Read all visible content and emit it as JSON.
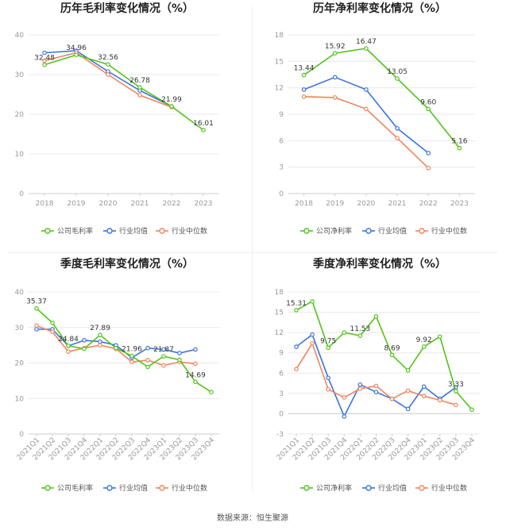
{
  "source": "数据来源：恒生聚源",
  "legend_labels": {
    "company_gross": "公司毛利率",
    "company_net": "公司净利率",
    "industry_avg": "行业均值",
    "industry_median": "行业中位数"
  },
  "colors": {
    "company": "#52c41a",
    "industry_avg": "#3a73e0",
    "industry_median": "#f0845c"
  },
  "chart_data": [
    {
      "type": "line",
      "title": "历年毛利率变化情况（%）",
      "categories": [
        "2018",
        "2019",
        "2020",
        "2021",
        "2022",
        "2023"
      ],
      "ylim": [
        0,
        40
      ],
      "yticks": [
        0,
        10,
        20,
        30,
        40
      ],
      "series": [
        {
          "name": "公司毛利率",
          "key": "company",
          "values": [
            32.48,
            34.96,
            32.56,
            26.78,
            21.99,
            16.01
          ],
          "labels": [
            "32.48",
            "34.96",
            "32.56",
            "26.78",
            "21.99",
            "16.01"
          ]
        },
        {
          "name": "行业均值",
          "key": "industry_avg",
          "values": [
            35.5,
            36.0,
            30.8,
            26.0,
            22.0,
            null
          ]
        },
        {
          "name": "行业中位数",
          "key": "industry_median",
          "values": [
            33.5,
            35.5,
            30.0,
            24.8,
            21.8,
            null
          ]
        }
      ]
    },
    {
      "type": "line",
      "title": "历年净利率变化情况（%）",
      "categories": [
        "2018",
        "2019",
        "2020",
        "2021",
        "2022",
        "2023"
      ],
      "ylim": [
        0,
        18
      ],
      "yticks": [
        0,
        3,
        6,
        9,
        12,
        15,
        18
      ],
      "series": [
        {
          "name": "公司净利率",
          "key": "company",
          "values": [
            13.44,
            15.92,
            16.47,
            13.05,
            9.6,
            5.16
          ],
          "labels": [
            "13.44",
            "15.92",
            "16.47",
            "13.05",
            "9.60",
            "5.16"
          ]
        },
        {
          "name": "行业均值",
          "key": "industry_avg",
          "values": [
            11.8,
            13.2,
            11.8,
            7.4,
            4.6,
            null
          ]
        },
        {
          "name": "行业中位数",
          "key": "industry_median",
          "values": [
            11.0,
            10.9,
            9.6,
            6.3,
            2.9,
            null
          ]
        }
      ]
    },
    {
      "type": "line",
      "title": "季度毛利率变化情况（%）",
      "categories": [
        "2021Q1",
        "2021Q2",
        "2021Q3",
        "2021Q4",
        "2022Q1",
        "2022Q2",
        "2022Q3",
        "2022Q4",
        "2023Q1",
        "2023Q2",
        "2023Q3",
        "2023Q4"
      ],
      "ylim": [
        0,
        40
      ],
      "yticks": [
        0,
        10,
        20,
        30,
        40
      ],
      "series": [
        {
          "name": "公司毛利率",
          "key": "company",
          "values": [
            35.37,
            31.3,
            24.84,
            24.0,
            27.89,
            24.2,
            21.96,
            18.9,
            21.87,
            20.9,
            14.69,
            11.8
          ],
          "labels": [
            "35.37",
            "",
            "24.84",
            "",
            "27.89",
            "",
            "21.96",
            "",
            "21.87",
            "",
            "14.69",
            ""
          ]
        },
        {
          "name": "行业均值",
          "key": "industry_avg",
          "values": [
            29.5,
            29.5,
            24.8,
            26.4,
            26.0,
            25.0,
            21.5,
            24.2,
            23.8,
            22.8,
            23.8,
            null
          ]
        },
        {
          "name": "行业中位数",
          "key": "industry_median",
          "values": [
            30.5,
            28.8,
            23.2,
            24.2,
            25.0,
            24.0,
            20.3,
            20.8,
            19.3,
            20.3,
            19.8,
            null
          ]
        }
      ]
    },
    {
      "type": "line",
      "title": "季度净利率变化情况（%）",
      "categories": [
        "2021Q1",
        "2021Q2",
        "2021Q3",
        "2021Q4",
        "2022Q1",
        "2022Q2",
        "2022Q3",
        "2022Q4",
        "2023Q1",
        "2023Q2",
        "2023Q3",
        "2023Q4"
      ],
      "ylim": [
        -3,
        18
      ],
      "yticks": [
        -3,
        0,
        3,
        6,
        9,
        12,
        15,
        18
      ],
      "series": [
        {
          "name": "公司净利率",
          "key": "company",
          "values": [
            15.31,
            16.6,
            9.75,
            12.0,
            11.53,
            14.4,
            8.69,
            6.4,
            9.92,
            11.4,
            3.33,
            0.6
          ],
          "labels": [
            "15.31",
            "",
            "9.75",
            "",
            "11.53",
            "",
            "8.69",
            "",
            "9.92",
            "",
            "3.33",
            ""
          ]
        },
        {
          "name": "行业均值",
          "key": "industry_avg",
          "values": [
            9.9,
            11.7,
            5.3,
            -0.4,
            4.3,
            3.2,
            2.2,
            0.7,
            4.0,
            2.2,
            3.9,
            null
          ]
        },
        {
          "name": "行业中位数",
          "key": "industry_median",
          "values": [
            6.6,
            10.4,
            3.6,
            2.4,
            3.7,
            4.1,
            2.2,
            3.4,
            2.6,
            2.0,
            1.3,
            null
          ]
        }
      ]
    }
  ]
}
